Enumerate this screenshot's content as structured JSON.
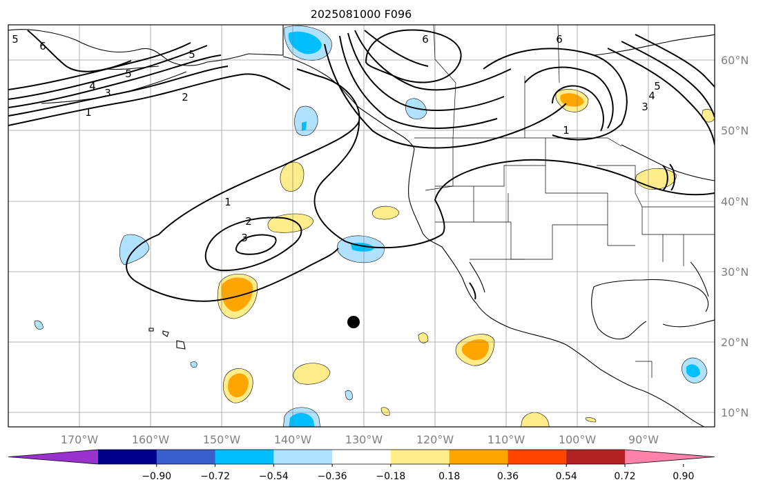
{
  "title": "2025081000 F096",
  "map": {
    "lon_range": [
      -180,
      -80
    ],
    "lat_range": [
      8,
      65
    ],
    "gridlines": true,
    "coastline_color": "#000000",
    "gridline_color": "#808080",
    "marker": {
      "lon": -131.5,
      "lat": 23,
      "shape": "filled circle",
      "color": "#000000"
    }
  },
  "latitude_ticks": [
    "60°N",
    "50°N",
    "40°N",
    "30°N",
    "20°N",
    "10°N"
  ],
  "longitude_ticks": [
    "170°W",
    "160°W",
    "150°W",
    "140°W",
    "130°W",
    "120°W",
    "110°W",
    "100°W",
    "90°W"
  ],
  "contour_labels": [
    "1",
    "2",
    "3",
    "4",
    "5",
    "6",
    "1",
    "2",
    "3",
    "1",
    "3",
    "4",
    "5",
    "6",
    "6",
    "5",
    "5"
  ],
  "colorbar": {
    "ticks": [
      "−0.90",
      "−0.72",
      "−0.54",
      "−0.36",
      "−0.18",
      "0.18",
      "0.36",
      "0.54",
      "0.72",
      "0.90"
    ],
    "colors": [
      "#9932CC",
      "#00008B",
      "#3A5FCD",
      "#00BFFF",
      "#B0E2FF",
      "#FFFFFF",
      "#FFEC8B",
      "#FFA500",
      "#FF4500",
      "#B22222",
      "#FF82AB"
    ],
    "extend": "both"
  }
}
